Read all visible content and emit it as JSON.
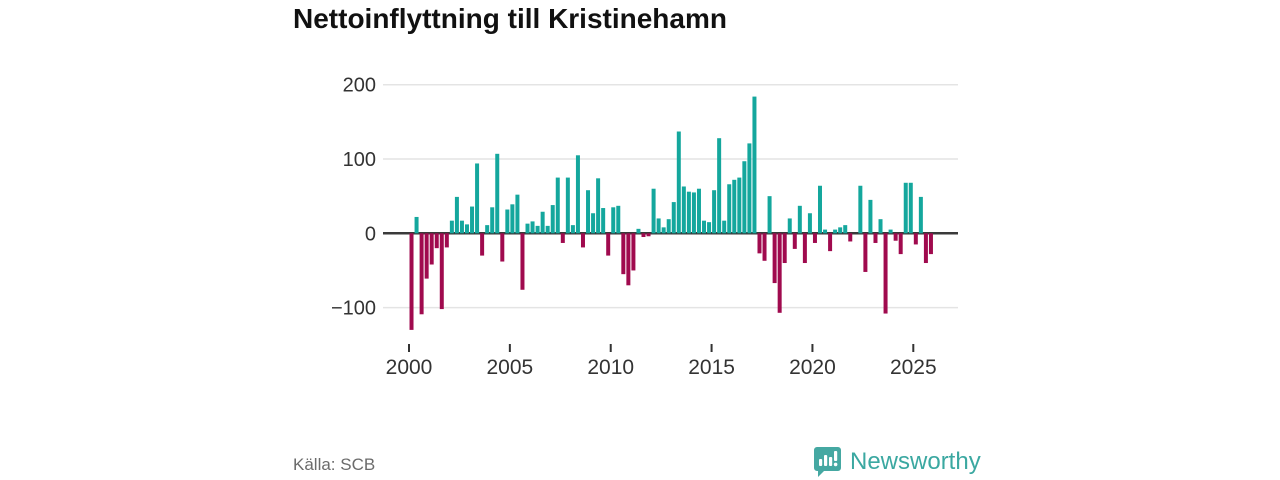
{
  "title": "Nettoinflyttning till Kristinehamn",
  "source_label": "Källa: SCB",
  "brand": {
    "name": "Newsworthy",
    "icon": "speech-bubble-bar-chart-icon"
  },
  "colors": {
    "positive": "#14a79d",
    "negative": "#a00a4e",
    "grid": "#e4e4e4",
    "zero_line": "#3a3a3a",
    "tick_text": "#333333",
    "title_text": "#111111",
    "source_text": "#6b6b6b",
    "brand_teal": "#3ba8a1",
    "logo_bg": "#45a8a2"
  },
  "chart_data": {
    "type": "bar",
    "title": "Nettoinflyttning till Kristinehamn",
    "x_tick_labels": [
      "2000",
      "2005",
      "2010",
      "2015",
      "2020",
      "2025"
    ],
    "y_ticks": [
      {
        "label": "200",
        "value": 200
      },
      {
        "label": "100",
        "value": 100
      },
      {
        "label": "0",
        "value": 0
      },
      {
        "label": "−100",
        "value": -100
      }
    ],
    "ylim": [
      -150,
      215
    ],
    "grid": "horizontal",
    "legend": "none",
    "frequency": "quarterly",
    "start_period": "2000 Q1",
    "end_period": "2025 Q4",
    "values": [
      -130,
      22,
      -109,
      -61,
      -42,
      -20,
      -102,
      -19,
      17,
      49,
      17,
      12,
      36,
      94,
      -30,
      11,
      35,
      107,
      -38,
      32,
      39,
      52,
      -76,
      13,
      16,
      10,
      29,
      10,
      38,
      75,
      -13,
      75,
      11,
      105,
      -19,
      58,
      27,
      74,
      34,
      -30,
      35,
      37,
      -55,
      -70,
      -50,
      6,
      -5,
      -4,
      60,
      20,
      8,
      19,
      42,
      137,
      63,
      56,
      55,
      60,
      17,
      15,
      58,
      128,
      17,
      66,
      72,
      75,
      97,
      121,
      184,
      -27,
      -37,
      50,
      -67,
      -107,
      -40,
      20,
      -21,
      37,
      -40,
      27,
      -13,
      64,
      5,
      -24,
      5,
      8,
      11,
      -11,
      0,
      64,
      -52,
      45,
      -13,
      19,
      -108,
      5,
      -10,
      -28,
      68,
      68,
      -15,
      49,
      -40,
      -28
    ]
  }
}
